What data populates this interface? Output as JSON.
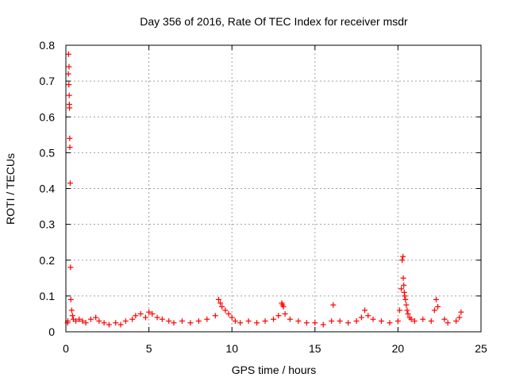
{
  "chart_data": {
    "type": "scatter",
    "title": "Day 356 of 2016, Rate Of TEC Index for receiver msdr",
    "xlabel": "GPS time / hours",
    "ylabel": "ROTI / TECUs",
    "xlim": [
      0,
      25
    ],
    "ylim": [
      0,
      0.8
    ],
    "xticks": [
      0,
      5,
      10,
      15,
      20,
      25
    ],
    "yticks": [
      0,
      0.1,
      0.2,
      0.3,
      0.4,
      0.5,
      0.6,
      0.7,
      0.8
    ],
    "grid": true,
    "marker": "plus",
    "color": "#ff0000",
    "series": [
      {
        "x": [
          0.1,
          0.12,
          0.15,
          0.16,
          0.18,
          0.19,
          0.2,
          0.21,
          0.22,
          0.23,
          0.24,
          0.26,
          0.28,
          0.3,
          0.35,
          0.4,
          0.45,
          0.6,
          0.8,
          1.0,
          1.2,
          1.5,
          1.8,
          2.0,
          2.3,
          2.6,
          3.0,
          3.3,
          3.6,
          4.0,
          4.2,
          4.5,
          4.8,
          5.0,
          5.2,
          5.5,
          5.8,
          6.2,
          6.5,
          7.0,
          7.5,
          8.0,
          8.5,
          9.0,
          9.2,
          9.3,
          9.4,
          9.6,
          9.8,
          10.0,
          10.2,
          10.5,
          11.0,
          11.5,
          12.0,
          12.5,
          12.8,
          13.0,
          13.05,
          13.1,
          13.2,
          13.5,
          14.0,
          14.5,
          15.0,
          15.5,
          16.0,
          16.1,
          16.5,
          17.0,
          17.5,
          17.8,
          18.0,
          18.2,
          18.5,
          19.0,
          19.5,
          20.0,
          20.1,
          20.2,
          20.25,
          20.3,
          20.32,
          20.35,
          20.38,
          20.4,
          20.45,
          20.5,
          20.55,
          20.6,
          20.7,
          20.8,
          21.0,
          21.5,
          22.0,
          22.2,
          22.3,
          22.4,
          22.8,
          23.0,
          23.5,
          23.7,
          23.8
        ],
        "y": [
          0.025,
          0.03,
          0.72,
          0.775,
          0.69,
          0.74,
          0.66,
          0.635,
          0.625,
          0.54,
          0.515,
          0.415,
          0.18,
          0.09,
          0.06,
          0.045,
          0.035,
          0.03,
          0.035,
          0.03,
          0.025,
          0.035,
          0.04,
          0.03,
          0.025,
          0.02,
          0.025,
          0.02,
          0.03,
          0.035,
          0.045,
          0.05,
          0.04,
          0.055,
          0.05,
          0.04,
          0.035,
          0.03,
          0.025,
          0.03,
          0.025,
          0.03,
          0.035,
          0.045,
          0.09,
          0.08,
          0.07,
          0.06,
          0.05,
          0.04,
          0.03,
          0.025,
          0.03,
          0.025,
          0.03,
          0.035,
          0.045,
          0.08,
          0.075,
          0.07,
          0.05,
          0.035,
          0.03,
          0.025,
          0.025,
          0.02,
          0.03,
          0.075,
          0.03,
          0.025,
          0.03,
          0.04,
          0.06,
          0.045,
          0.035,
          0.03,
          0.025,
          0.03,
          0.06,
          0.12,
          0.2,
          0.21,
          0.15,
          0.13,
          0.11,
          0.1,
          0.09,
          0.075,
          0.06,
          0.05,
          0.04,
          0.035,
          0.03,
          0.035,
          0.03,
          0.06,
          0.09,
          0.07,
          0.035,
          0.025,
          0.03,
          0.04,
          0.055
        ]
      }
    ]
  }
}
